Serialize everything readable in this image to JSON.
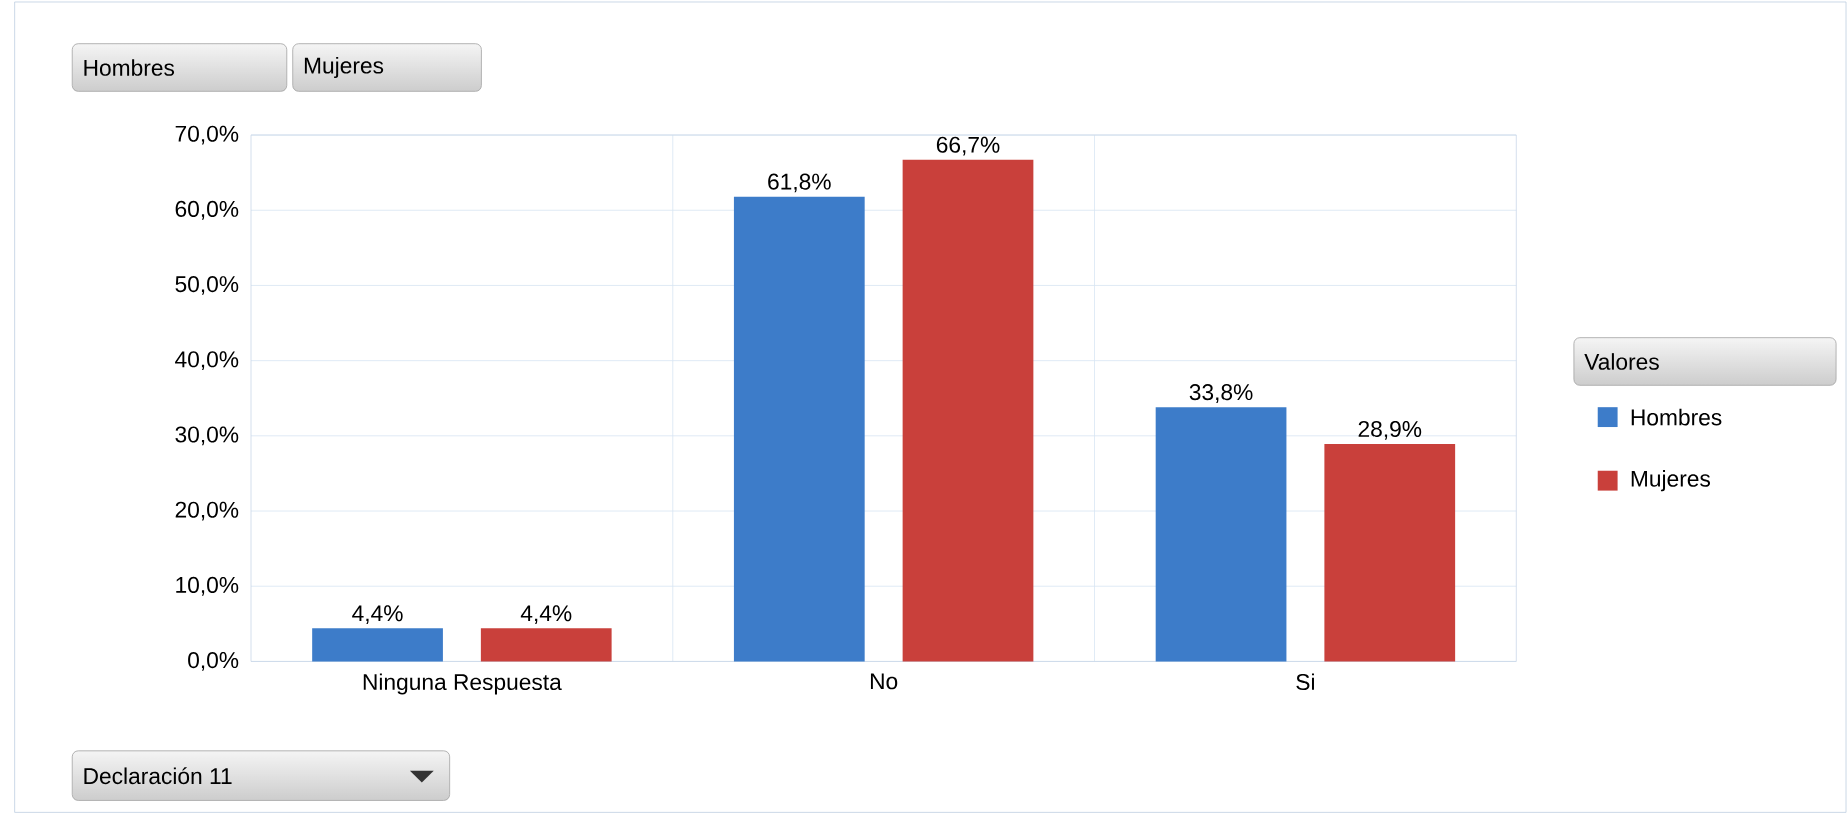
{
  "chart_data": {
    "type": "bar",
    "categories": [
      "Ninguna Respuesta",
      "No",
      "Si"
    ],
    "series": [
      {
        "name": "Hombres",
        "color": "#3d7cc9",
        "values": [
          4.4,
          61.8,
          33.8
        ],
        "value_labels": [
          "4,4%",
          "61,8%",
          "33,8%"
        ]
      },
      {
        "name": "Mujeres",
        "color": "#c9403b",
        "values": [
          4.4,
          66.7,
          28.9
        ],
        "value_labels": [
          "4,4%",
          "66,7%",
          "28,9%"
        ]
      }
    ],
    "ylim": [
      0,
      70
    ],
    "yticks": [
      {
        "value": 0,
        "label": "0,0%"
      },
      {
        "value": 10,
        "label": "10,0%"
      },
      {
        "value": 20,
        "label": "20,0%"
      },
      {
        "value": 30,
        "label": "30,0%"
      },
      {
        "value": 40,
        "label": "40,0%"
      },
      {
        "value": 50,
        "label": "50,0%"
      },
      {
        "value": 60,
        "label": "60,0%"
      },
      {
        "value": 70,
        "label": "70,0%"
      }
    ],
    "grid": true,
    "legend": "right",
    "legend_title": "Valores",
    "annotations": [
      "Declaración 11"
    ]
  }
}
